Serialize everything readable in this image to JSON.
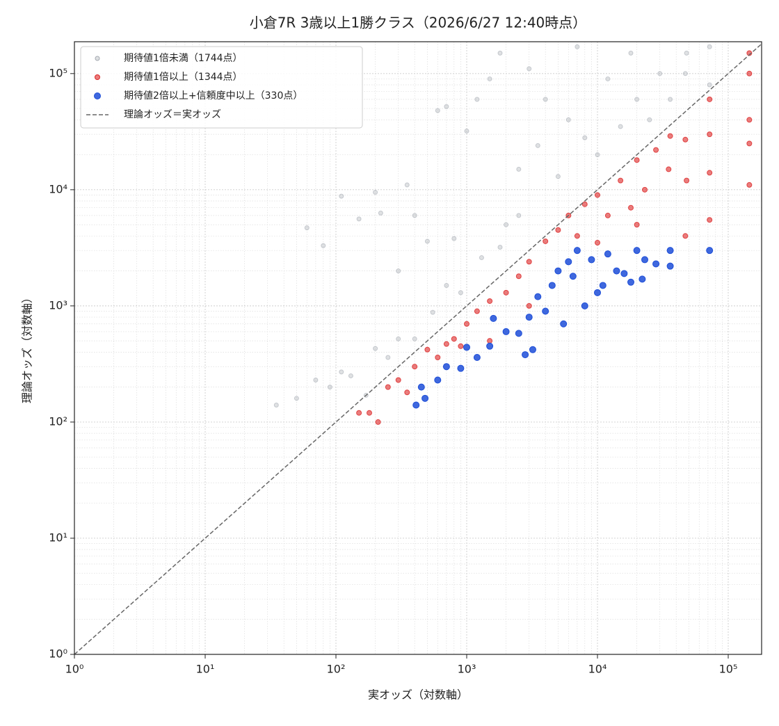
{
  "chart_data": {
    "type": "scatter",
    "title": "小倉7R 3歳以上1勝クラス（2026/6/27 12:40時点）",
    "x_label": "実オッズ（対数軸）",
    "y_label": "理論オッズ（対数軸）",
    "xscale": "log",
    "yscale": "log",
    "grid": true,
    "legend": "upper left",
    "xlim": [
      1,
      180000
    ],
    "ylim": [
      1,
      188000
    ],
    "xticks": [
      {
        "value": 1,
        "label": "10⁰"
      },
      {
        "value": 10,
        "label": "10¹"
      },
      {
        "value": 100,
        "label": "10²"
      },
      {
        "value": 1000,
        "label": "10³"
      },
      {
        "value": 10000,
        "label": "10⁴"
      },
      {
        "value": 100000,
        "label": "10⁵"
      }
    ],
    "yticks": [
      {
        "value": 1,
        "label": "10⁰"
      },
      {
        "value": 10,
        "label": "10¹"
      },
      {
        "value": 100,
        "label": "10²"
      },
      {
        "value": 1000,
        "label": "10³"
      },
      {
        "value": 10000,
        "label": "10⁴"
      },
      {
        "value": 100000,
        "label": "10⁵"
      }
    ],
    "reference_line": {
      "label": "理論オッズ＝実オッズ",
      "color": "#666666",
      "style": "dashed"
    },
    "series": [
      {
        "name": "期待値1倍未満（1744点）",
        "color": "#a3a8b0",
        "opacity": 0.35,
        "radius": 3,
        "x": [
          35,
          50,
          70,
          90,
          110,
          130,
          170,
          200,
          250,
          300,
          400,
          550,
          60,
          80,
          110,
          150,
          200,
          220,
          300,
          350,
          400,
          500,
          600,
          700,
          800,
          1000,
          1200,
          1500,
          1800,
          2000,
          2500,
          3000,
          3500,
          4000,
          5000,
          6000,
          7000,
          8000,
          10000,
          12000,
          15000,
          18000,
          20000,
          25000,
          30000,
          36000,
          47000,
          48000,
          72000,
          72000,
          900,
          1300,
          1800,
          2500,
          700
        ],
        "values": [
          140,
          160,
          230,
          200,
          270,
          250,
          170,
          430,
          360,
          520,
          520,
          880,
          4700,
          3300,
          8800,
          5600,
          9500,
          6300,
          2000,
          11000,
          6000,
          3600,
          48000,
          52000,
          3800,
          32000,
          60000,
          90000,
          150000,
          5000,
          15000,
          110000,
          24000,
          60000,
          13000,
          40000,
          170000,
          28000,
          20000,
          90000,
          35000,
          150000,
          60000,
          40000,
          100000,
          60000,
          100000,
          150000,
          80000,
          170000,
          1300,
          2600,
          3200,
          6000,
          1500
        ]
      },
      {
        "name": "期待値1倍以上（1344点）",
        "color": "#dc2626",
        "opacity": 0.6,
        "radius": 3.5,
        "x": [
          150,
          180,
          210,
          250,
          300,
          350,
          400,
          500,
          600,
          700,
          800,
          1000,
          1200,
          1500,
          2000,
          2500,
          3000,
          4000,
          5000,
          6000,
          7000,
          8000,
          10000,
          12000,
          15000,
          18000,
          20000,
          23000,
          28000,
          35000,
          36000,
          47000,
          47000,
          48000,
          72000,
          72000,
          72000,
          72000,
          145000,
          145000,
          145000,
          145000,
          145000,
          10000,
          20000,
          3000,
          1500,
          900
        ],
        "values": [
          120,
          120,
          100,
          200,
          230,
          180,
          300,
          420,
          360,
          470,
          520,
          700,
          900,
          1100,
          1300,
          1800,
          2400,
          3600,
          4500,
          6000,
          4000,
          7500,
          9000,
          6000,
          12000,
          7000,
          18000,
          10000,
          22000,
          15000,
          29000,
          4000,
          27000,
          12000,
          5500,
          60000,
          30000,
          14000,
          11000,
          40000,
          100000,
          150000,
          25000,
          3500,
          5000,
          1000,
          500,
          450
        ]
      },
      {
        "name": "期待値2倍以上+信頼度中以上（330点）",
        "color": "#1d4ed8",
        "opacity": 0.85,
        "radius": 4.5,
        "x": [
          410,
          450,
          480,
          600,
          700,
          900,
          1000,
          1200,
          1500,
          1600,
          2000,
          2500,
          2800,
          3000,
          3200,
          3500,
          4000,
          4500,
          5000,
          5500,
          6000,
          6500,
          7000,
          8000,
          9000,
          10000,
          11000,
          12000,
          14000,
          16000,
          18000,
          20000,
          22000,
          23000,
          28000,
          36000,
          36000,
          72000
        ],
        "values": [
          140,
          200,
          160,
          230,
          300,
          290,
          440,
          360,
          450,
          780,
          600,
          580,
          380,
          800,
          420,
          1200,
          900,
          1500,
          2000,
          700,
          2400,
          1800,
          3000,
          1000,
          2500,
          1300,
          1500,
          2800,
          2000,
          1900,
          1600,
          3000,
          1700,
          2500,
          2300,
          2200,
          3000,
          3000
        ]
      }
    ]
  }
}
